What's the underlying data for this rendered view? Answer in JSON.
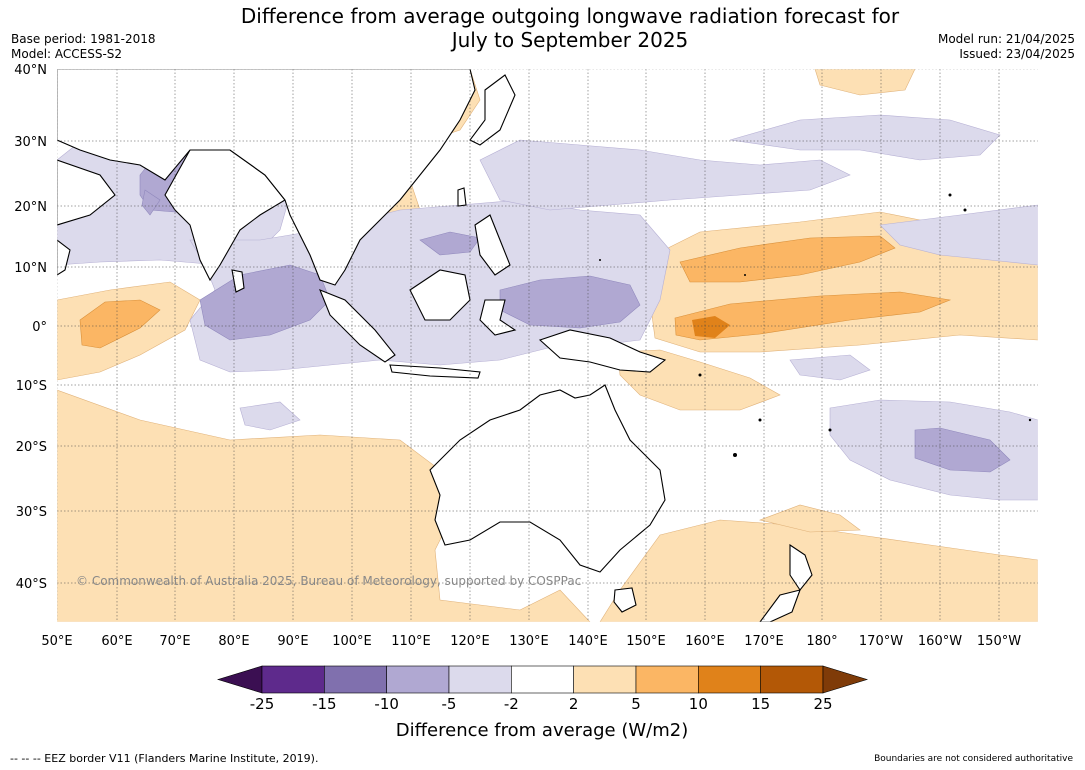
{
  "title_line1": "Difference from average outgoing longwave radiation forecast for",
  "title_line2": "July to September 2025",
  "base_period": "Base period: 1981-2018",
  "model": "Model: ACCESS-S2",
  "model_run": "Model run: 21/04/2025",
  "issued": "Issued: 23/04/2025",
  "copyright": "© Commonwealth of Australia 2025, Bureau of Meteorology, supported by COSPPac",
  "footer_left": "--  --  -- EEZ border V11 (Flanders Marine Institute, 2019).",
  "footer_right": "Boundaries are not considered authoritative",
  "lat_labels": [
    "40°N",
    "30°N",
    "20°N",
    "10°N",
    "0°",
    "10°S",
    "20°S",
    "30°S",
    "40°S"
  ],
  "lon_labels": [
    "50°E",
    "60°E",
    "70°E",
    "80°E",
    "90°E",
    "100°E",
    "110°E",
    "120°E",
    "130°E",
    "140°E",
    "150°E",
    "160°E",
    "170°E",
    "180°",
    "170°W",
    "160°W",
    "150°W"
  ],
  "colorbar": {
    "label": "Difference from average (W/m2)",
    "ticks": [
      "-25",
      "-15",
      "-10",
      "-5",
      "-2",
      "2",
      "5",
      "10",
      "15",
      "25"
    ],
    "colors": [
      "#3b0f52",
      "#5e2a8c",
      "#8070ae",
      "#b0a8d2",
      "#dcdaec",
      "#ffffff",
      "#fde0b4",
      "#fbb664",
      "#e0821a",
      "#b35806",
      "#7f3b08"
    ]
  }
}
